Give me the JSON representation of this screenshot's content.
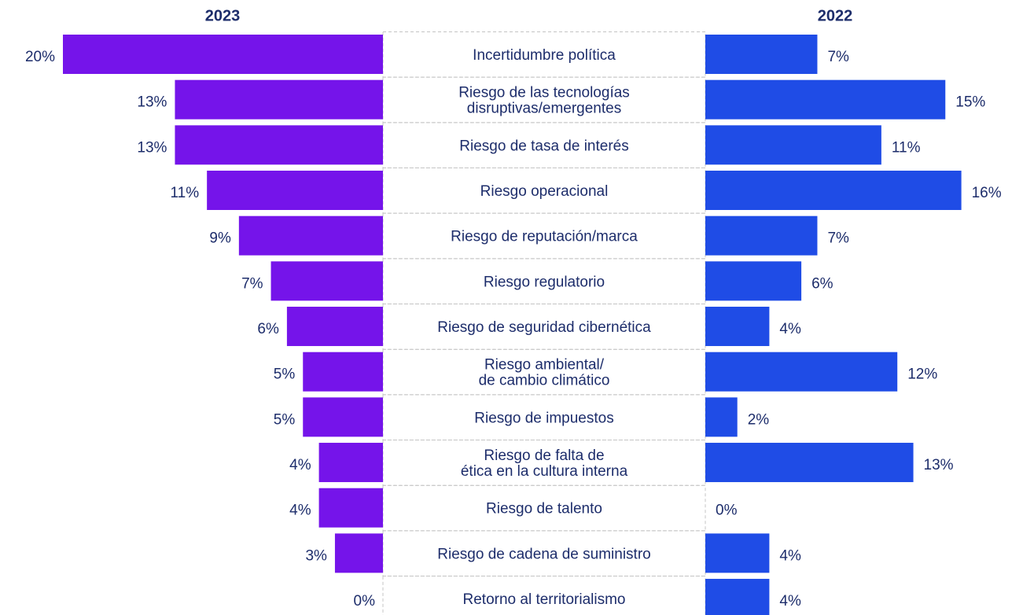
{
  "chart_data": {
    "type": "butterfly",
    "categories": [
      [
        "Incertidumbre política"
      ],
      [
        "Riesgo de las tecnologías",
        "disruptivas/emergentes"
      ],
      [
        "Riesgo de tasa de interés"
      ],
      [
        "Riesgo operacional"
      ],
      [
        "Riesgo de reputación/marca"
      ],
      [
        "Riesgo regulatorio"
      ],
      [
        "Riesgo de seguridad cibernética"
      ],
      [
        "Riesgo ambiental/",
        "de cambio climático"
      ],
      [
        "Riesgo de impuestos"
      ],
      [
        "Riesgo de falta de",
        "ética en la cultura interna"
      ],
      [
        "Riesgo de talento"
      ],
      [
        "Riesgo de cadena de suministro"
      ],
      [
        "Retorno al territorialismo"
      ]
    ],
    "series": [
      {
        "name": "2023",
        "color": "#7514ea",
        "values": [
          20,
          13,
          13,
          11,
          9,
          7,
          6,
          5,
          5,
          4,
          4,
          3,
          0
        ],
        "value_labels": [
          "20%",
          "13%",
          "13%",
          "11%",
          "9%",
          "7%",
          "6%",
          "5%",
          "5%",
          "4%",
          "4%",
          "3%",
          "0%"
        ]
      },
      {
        "name": "2022",
        "color": "#1f4ce6",
        "values": [
          7,
          15,
          11,
          16,
          7,
          6,
          4,
          12,
          2,
          13,
          0,
          4,
          4
        ],
        "value_labels": [
          "7%",
          "15%",
          "11%",
          "16%",
          "7%",
          "6%",
          "4%",
          "12%",
          "2%",
          "13%",
          "0%",
          "4%",
          "4%"
        ]
      }
    ]
  }
}
